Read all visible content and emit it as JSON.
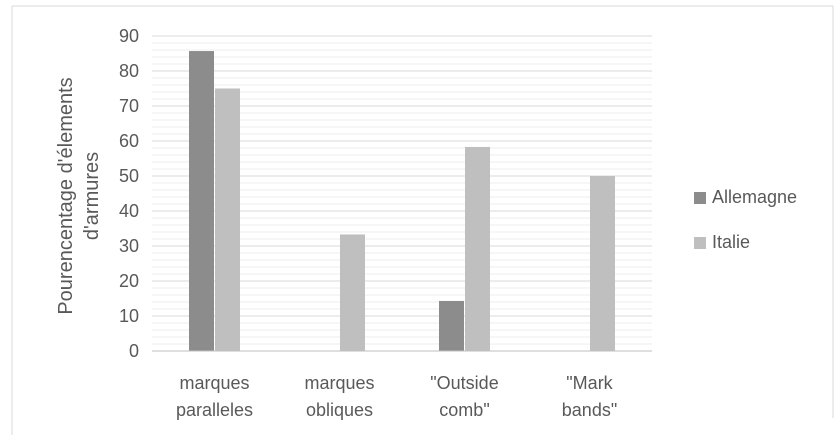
{
  "chart_data": {
    "type": "bar",
    "categories": [
      [
        "marques",
        "paralleles"
      ],
      [
        "marques",
        "obliques"
      ],
      [
        "\"Outside",
        "comb\""
      ],
      [
        "\"Mark",
        "bands\""
      ]
    ],
    "series": [
      {
        "name": "Allemagne",
        "color": "#8c8c8c",
        "values": [
          85.7,
          0,
          14.3,
          0
        ]
      },
      {
        "name": "Italie",
        "color": "#bfbfbf",
        "values": [
          75,
          33.3,
          58.3,
          50
        ]
      }
    ],
    "ylabel": [
      "Pourencentage d'élements",
      "d'armures"
    ],
    "ylim": [
      0,
      90
    ],
    "yticks": [
      0,
      10,
      20,
      30,
      40,
      50,
      60,
      70,
      80,
      90
    ],
    "grid": true,
    "legend_position": "right"
  }
}
